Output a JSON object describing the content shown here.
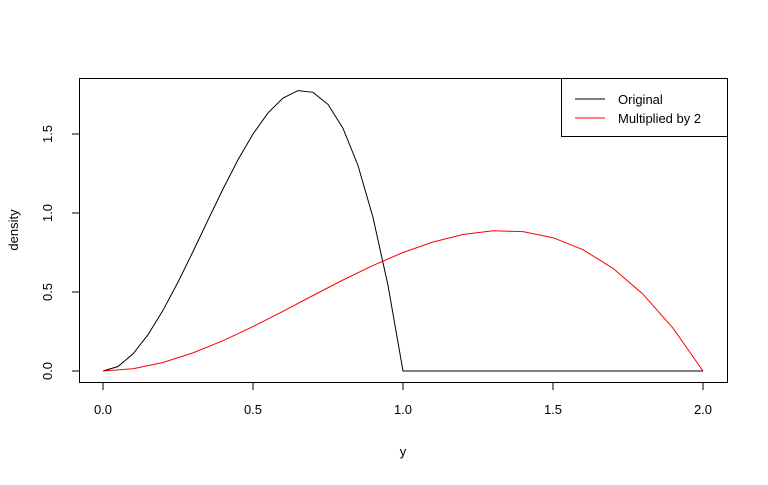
{
  "chart_data": {
    "type": "line",
    "title": "",
    "xlabel": "y",
    "ylabel": "density",
    "xlim": [
      -0.08,
      2.08
    ],
    "ylim": [
      -0.07,
      1.85
    ],
    "xticks": [
      "0.0",
      "0.5",
      "1.0",
      "1.5",
      "2.0"
    ],
    "yticks": [
      "0.0",
      "0.5",
      "1.0",
      "1.5"
    ],
    "grid": false,
    "legend_position": "top-right",
    "series": [
      {
        "name": "Original",
        "color": "#000000",
        "x": [
          0,
          0.05,
          0.1,
          0.15,
          0.2,
          0.25,
          0.3,
          0.35,
          0.4,
          0.45,
          0.5,
          0.55,
          0.6,
          0.65,
          0.7,
          0.75,
          0.8,
          0.85,
          0.9,
          0.95,
          1.0,
          1.0,
          1.5,
          2.0
        ],
        "y": [
          0,
          0.0285,
          0.108,
          0.2295,
          0.384,
          0.5625,
          0.756,
          0.9555,
          1.152,
          1.3365,
          1.5,
          1.6335,
          1.728,
          1.7745,
          1.764,
          1.6875,
          1.536,
          1.3005,
          0.972,
          0.5415,
          0,
          0,
          0,
          0
        ]
      },
      {
        "name": "Multiplied by 2",
        "color": "#ff0000",
        "x": [
          0,
          0.1,
          0.2,
          0.3,
          0.4,
          0.5,
          0.6,
          0.7,
          0.8,
          0.9,
          1.0,
          1.1,
          1.2,
          1.3,
          1.4,
          1.5,
          1.6,
          1.7,
          1.8,
          1.9,
          2.0
        ],
        "y": [
          0,
          0.01425,
          0.054,
          0.11475,
          0.192,
          0.28125,
          0.378,
          0.47775,
          0.576,
          0.66825,
          0.75,
          0.81675,
          0.864,
          0.88725,
          0.882,
          0.84375,
          0.768,
          0.65025,
          0.486,
          0.27075,
          0
        ]
      }
    ]
  }
}
